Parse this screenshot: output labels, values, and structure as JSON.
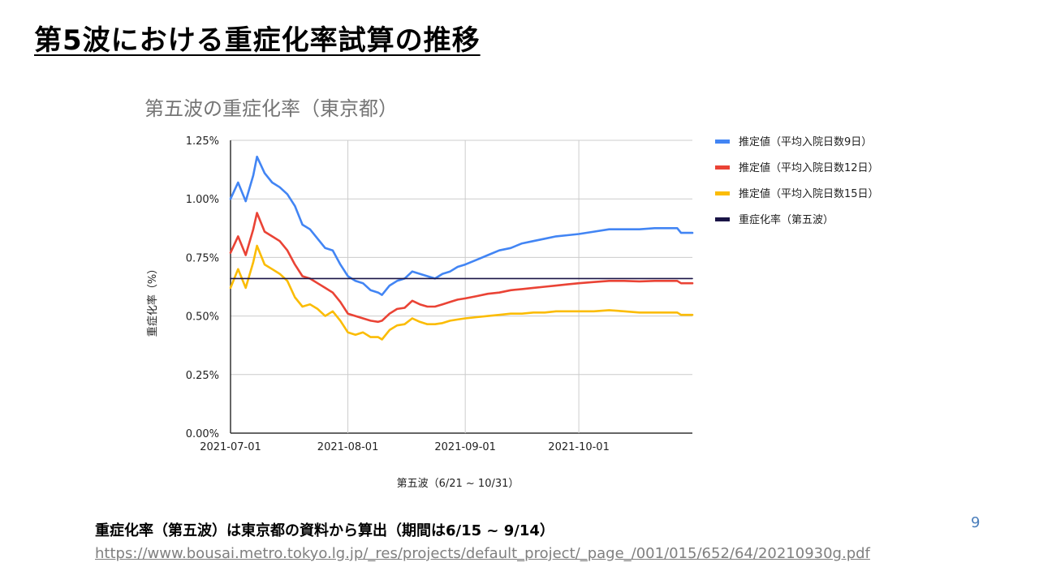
{
  "slide": {
    "title": "第5波における重症化率試算の推移",
    "page_number": "9",
    "source_note": "重症化率（第五波）は東京都の資料から算出（期間は6/15 ~ 9/14）",
    "source_url": "https://www.bousai.metro.tokyo.lg.jp/_res/projects/default_project/_page_/001/015/652/64/20210930g.pdf"
  },
  "chart_data": {
    "type": "line",
    "title": "第五波の重症化率（東京都）",
    "xlabel": "第五波（6/21 ~ 10/31）",
    "ylabel": "重症化率（%）",
    "xlim": [
      "2021-07-01",
      "2021-10-31"
    ],
    "ylim": [
      0,
      1.25
    ],
    "x_ticks": [
      "2021-07-01",
      "2021-08-01",
      "2021-09-01",
      "2021-10-01"
    ],
    "y_ticks": [
      "0.00%",
      "0.25%",
      "0.50%",
      "0.75%",
      "1.00%",
      "1.25%"
    ],
    "legend_position": "right",
    "grid": true,
    "series": [
      {
        "name": "推定値（平均入院日数9日）",
        "color": "#4285f4",
        "points": [
          [
            "2021-07-01",
            1.0
          ],
          [
            "2021-07-03",
            1.07
          ],
          [
            "2021-07-05",
            0.99
          ],
          [
            "2021-07-07",
            1.1
          ],
          [
            "2021-07-08",
            1.18
          ],
          [
            "2021-07-10",
            1.11
          ],
          [
            "2021-07-12",
            1.07
          ],
          [
            "2021-07-14",
            1.05
          ],
          [
            "2021-07-16",
            1.02
          ],
          [
            "2021-07-18",
            0.97
          ],
          [
            "2021-07-20",
            0.89
          ],
          [
            "2021-07-22",
            0.87
          ],
          [
            "2021-07-24",
            0.83
          ],
          [
            "2021-07-26",
            0.79
          ],
          [
            "2021-07-28",
            0.78
          ],
          [
            "2021-07-30",
            0.72
          ],
          [
            "2021-08-01",
            0.67
          ],
          [
            "2021-08-03",
            0.65
          ],
          [
            "2021-08-05",
            0.64
          ],
          [
            "2021-08-07",
            0.61
          ],
          [
            "2021-08-09",
            0.6
          ],
          [
            "2021-08-10",
            0.59
          ],
          [
            "2021-08-12",
            0.63
          ],
          [
            "2021-08-14",
            0.65
          ],
          [
            "2021-08-16",
            0.66
          ],
          [
            "2021-08-18",
            0.69
          ],
          [
            "2021-08-20",
            0.68
          ],
          [
            "2021-08-22",
            0.67
          ],
          [
            "2021-08-24",
            0.66
          ],
          [
            "2021-08-26",
            0.68
          ],
          [
            "2021-08-28",
            0.69
          ],
          [
            "2021-08-30",
            0.71
          ],
          [
            "2021-09-01",
            0.72
          ],
          [
            "2021-09-04",
            0.74
          ],
          [
            "2021-09-07",
            0.76
          ],
          [
            "2021-09-10",
            0.78
          ],
          [
            "2021-09-13",
            0.79
          ],
          [
            "2021-09-16",
            0.81
          ],
          [
            "2021-09-19",
            0.82
          ],
          [
            "2021-09-22",
            0.83
          ],
          [
            "2021-09-25",
            0.84
          ],
          [
            "2021-09-28",
            0.845
          ],
          [
            "2021-10-01",
            0.85
          ],
          [
            "2021-10-05",
            0.86
          ],
          [
            "2021-10-09",
            0.87
          ],
          [
            "2021-10-13",
            0.87
          ],
          [
            "2021-10-17",
            0.87
          ],
          [
            "2021-10-21",
            0.875
          ],
          [
            "2021-10-25",
            0.875
          ],
          [
            "2021-10-27",
            0.875
          ],
          [
            "2021-10-28",
            0.855
          ],
          [
            "2021-10-31",
            0.855
          ]
        ]
      },
      {
        "name": "推定値（平均入院日数12日）",
        "color": "#ea4335",
        "points": [
          [
            "2021-07-01",
            0.77
          ],
          [
            "2021-07-03",
            0.84
          ],
          [
            "2021-07-05",
            0.76
          ],
          [
            "2021-07-07",
            0.87
          ],
          [
            "2021-07-08",
            0.94
          ],
          [
            "2021-07-10",
            0.86
          ],
          [
            "2021-07-12",
            0.84
          ],
          [
            "2021-07-14",
            0.82
          ],
          [
            "2021-07-16",
            0.78
          ],
          [
            "2021-07-18",
            0.72
          ],
          [
            "2021-07-20",
            0.67
          ],
          [
            "2021-07-22",
            0.66
          ],
          [
            "2021-07-24",
            0.64
          ],
          [
            "2021-07-26",
            0.62
          ],
          [
            "2021-07-28",
            0.6
          ],
          [
            "2021-07-30",
            0.56
          ],
          [
            "2021-08-01",
            0.51
          ],
          [
            "2021-08-03",
            0.5
          ],
          [
            "2021-08-05",
            0.49
          ],
          [
            "2021-08-07",
            0.48
          ],
          [
            "2021-08-09",
            0.475
          ],
          [
            "2021-08-10",
            0.48
          ],
          [
            "2021-08-12",
            0.51
          ],
          [
            "2021-08-14",
            0.53
          ],
          [
            "2021-08-16",
            0.535
          ],
          [
            "2021-08-18",
            0.565
          ],
          [
            "2021-08-20",
            0.55
          ],
          [
            "2021-08-22",
            0.54
          ],
          [
            "2021-08-24",
            0.54
          ],
          [
            "2021-08-26",
            0.55
          ],
          [
            "2021-08-28",
            0.56
          ],
          [
            "2021-08-30",
            0.57
          ],
          [
            "2021-09-01",
            0.575
          ],
          [
            "2021-09-04",
            0.585
          ],
          [
            "2021-09-07",
            0.595
          ],
          [
            "2021-09-10",
            0.6
          ],
          [
            "2021-09-13",
            0.61
          ],
          [
            "2021-09-16",
            0.615
          ],
          [
            "2021-09-19",
            0.62
          ],
          [
            "2021-09-22",
            0.625
          ],
          [
            "2021-09-25",
            0.63
          ],
          [
            "2021-09-28",
            0.635
          ],
          [
            "2021-10-01",
            0.64
          ],
          [
            "2021-10-05",
            0.645
          ],
          [
            "2021-10-09",
            0.65
          ],
          [
            "2021-10-13",
            0.65
          ],
          [
            "2021-10-17",
            0.648
          ],
          [
            "2021-10-21",
            0.65
          ],
          [
            "2021-10-25",
            0.65
          ],
          [
            "2021-10-27",
            0.65
          ],
          [
            "2021-10-28",
            0.64
          ],
          [
            "2021-10-31",
            0.64
          ]
        ]
      },
      {
        "name": "推定値（平均入院日数15日）",
        "color": "#fbbc04",
        "points": [
          [
            "2021-07-01",
            0.62
          ],
          [
            "2021-07-03",
            0.7
          ],
          [
            "2021-07-05",
            0.62
          ],
          [
            "2021-07-07",
            0.73
          ],
          [
            "2021-07-08",
            0.8
          ],
          [
            "2021-07-10",
            0.72
          ],
          [
            "2021-07-12",
            0.7
          ],
          [
            "2021-07-14",
            0.68
          ],
          [
            "2021-07-16",
            0.65
          ],
          [
            "2021-07-18",
            0.58
          ],
          [
            "2021-07-20",
            0.54
          ],
          [
            "2021-07-22",
            0.55
          ],
          [
            "2021-07-24",
            0.53
          ],
          [
            "2021-07-26",
            0.5
          ],
          [
            "2021-07-28",
            0.52
          ],
          [
            "2021-07-30",
            0.48
          ],
          [
            "2021-08-01",
            0.43
          ],
          [
            "2021-08-03",
            0.42
          ],
          [
            "2021-08-05",
            0.43
          ],
          [
            "2021-08-07",
            0.41
          ],
          [
            "2021-08-09",
            0.41
          ],
          [
            "2021-08-10",
            0.4
          ],
          [
            "2021-08-12",
            0.44
          ],
          [
            "2021-08-14",
            0.46
          ],
          [
            "2021-08-16",
            0.465
          ],
          [
            "2021-08-18",
            0.49
          ],
          [
            "2021-08-20",
            0.475
          ],
          [
            "2021-08-22",
            0.465
          ],
          [
            "2021-08-24",
            0.465
          ],
          [
            "2021-08-26",
            0.47
          ],
          [
            "2021-08-28",
            0.48
          ],
          [
            "2021-08-30",
            0.485
          ],
          [
            "2021-09-01",
            0.49
          ],
          [
            "2021-09-04",
            0.495
          ],
          [
            "2021-09-07",
            0.5
          ],
          [
            "2021-09-10",
            0.505
          ],
          [
            "2021-09-13",
            0.51
          ],
          [
            "2021-09-16",
            0.51
          ],
          [
            "2021-09-19",
            0.515
          ],
          [
            "2021-09-22",
            0.515
          ],
          [
            "2021-09-25",
            0.52
          ],
          [
            "2021-09-28",
            0.52
          ],
          [
            "2021-10-01",
            0.52
          ],
          [
            "2021-10-05",
            0.52
          ],
          [
            "2021-10-09",
            0.525
          ],
          [
            "2021-10-13",
            0.52
          ],
          [
            "2021-10-17",
            0.515
          ],
          [
            "2021-10-21",
            0.515
          ],
          [
            "2021-10-25",
            0.515
          ],
          [
            "2021-10-27",
            0.515
          ],
          [
            "2021-10-28",
            0.505
          ],
          [
            "2021-10-31",
            0.505
          ]
        ]
      },
      {
        "name": "重症化率（第五波）",
        "color": "#1a1446",
        "points": [
          [
            "2021-07-01",
            0.66
          ],
          [
            "2021-10-31",
            0.66
          ]
        ]
      }
    ]
  }
}
